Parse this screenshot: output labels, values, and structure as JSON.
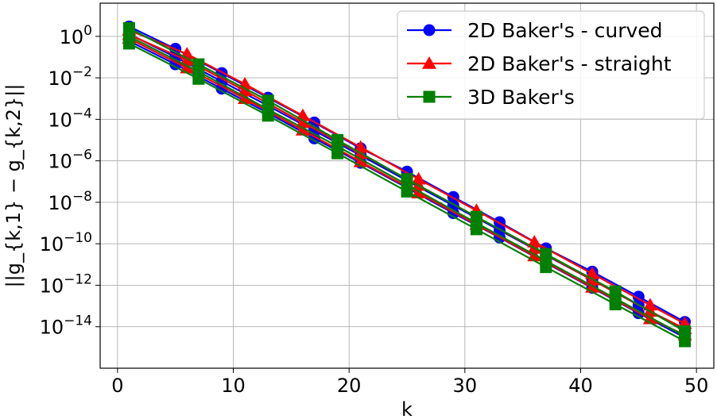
{
  "chart_data": {
    "type": "line",
    "xlabel": "k",
    "ylabel": "||g_{k,1} − g_{k,2}||",
    "y_scale": "log",
    "xlim": [
      -1.5,
      51.5
    ],
    "ylim_exponent": [
      -16,
      1.6
    ],
    "xticks": [
      0,
      10,
      20,
      30,
      40,
      50
    ],
    "xtick_labels": [
      "0",
      "10",
      "20",
      "30",
      "40",
      "50"
    ],
    "yticks": [
      0,
      -2,
      -4,
      -6,
      -8,
      -10,
      -12,
      -14
    ],
    "ytick_labels": [
      "10",
      "10",
      "10",
      "10",
      "10",
      "10",
      "10",
      "10"
    ],
    "ytick_exponents": [
      "0",
      "−2",
      "−4",
      "−6",
      "−8",
      "−10",
      "−12",
      "−14"
    ],
    "grid": true,
    "legend_position": "top-right",
    "series": [
      {
        "name": "2D Baker's - curved",
        "color": "#0000ff",
        "marker": "circle",
        "lines": [
          {
            "x": [
              1,
              5,
              9,
              13,
              17,
              21,
              25,
              29,
              33,
              37,
              41,
              45,
              49
            ],
            "y": [
              3.0,
              0.25,
              0.017,
              0.0011,
              7e-05,
              4e-06,
              3e-07,
              1.8e-08,
              1.1e-09,
              6e-11,
              4.5e-12,
              2.8e-13,
              1.7e-14
            ]
          },
          {
            "x": [
              1,
              5,
              9,
              13,
              17,
              21,
              25,
              29,
              33,
              37,
              41,
              45,
              49
            ],
            "y": [
              1.3,
              0.1,
              0.0068,
              0.00045,
              2.8e-05,
              1.8e-06,
              1.1e-07,
              7e-09,
              4.5e-10,
              2.8e-11,
              1.8e-12,
              1.1e-13,
              7e-15
            ]
          },
          {
            "x": [
              1,
              5,
              9,
              13,
              17,
              21,
              25,
              29,
              33,
              37,
              41,
              45,
              49
            ],
            "y": [
              0.6,
              0.045,
              0.003,
              0.0002,
              1.2e-05,
              8e-07,
              5e-08,
              3e-09,
              2e-10,
              1.2e-11,
              7.5e-13,
              4.5e-14,
              3e-15
            ]
          }
        ]
      },
      {
        "name": "2D Baker's - straight",
        "color": "#ff0000",
        "marker": "triangle",
        "lines": [
          {
            "x": [
              1,
              6,
              11,
              16,
              21,
              26,
              31,
              36,
              41,
              46,
              49
            ],
            "y": [
              2.0,
              0.14,
              0.005,
              0.00015,
              4.5e-06,
              1.3e-07,
              4e-09,
              1.2e-10,
              3.6e-12,
              1.1e-13,
              1.4e-14
            ]
          },
          {
            "x": [
              1,
              6,
              11,
              16,
              21,
              26,
              31,
              36,
              41,
              46,
              49
            ],
            "y": [
              1.2,
              0.07,
              0.0024,
              7e-05,
              2.2e-06,
              6.5e-08,
              2e-09,
              6e-11,
              1.8e-12,
              5.5e-14,
              8e-15
            ]
          },
          {
            "x": [
              1,
              6,
              11,
              16,
              21,
              26,
              31,
              36,
              41,
              46,
              49
            ],
            "y": [
              0.8,
              0.03,
              0.001,
              3e-05,
              9e-07,
              2.8e-08,
              8.5e-10,
              2.6e-11,
              8e-13,
              2.4e-14,
              4e-15
            ]
          }
        ]
      },
      {
        "name": "3D Baker's",
        "color": "#008000",
        "marker": "square",
        "lines": [
          {
            "x": [
              1,
              7,
              13,
              19,
              25,
              31,
              37,
              43,
              49
            ],
            "y": [
              2.5,
              0.045,
              0.0008,
              1e-05,
              1.3e-07,
              2e-09,
              3.2e-11,
              5e-13,
              6e-15
            ]
          },
          {
            "x": [
              1,
              7,
              13,
              19,
              25,
              31,
              37,
              43,
              49
            ],
            "y": [
              1.0,
              0.02,
              0.0003,
              5e-06,
              7e-08,
              1e-09,
              1.5e-11,
              2.3e-13,
              3.5e-15
            ]
          },
          {
            "x": [
              1,
              7,
              13,
              19,
              25,
              31,
              37,
              43,
              49
            ],
            "y": [
              0.45,
              0.009,
              0.00015,
              2.3e-06,
              3.3e-08,
              5e-10,
              7.5e-12,
              1.2e-13,
              2e-15
            ]
          }
        ]
      }
    ]
  }
}
